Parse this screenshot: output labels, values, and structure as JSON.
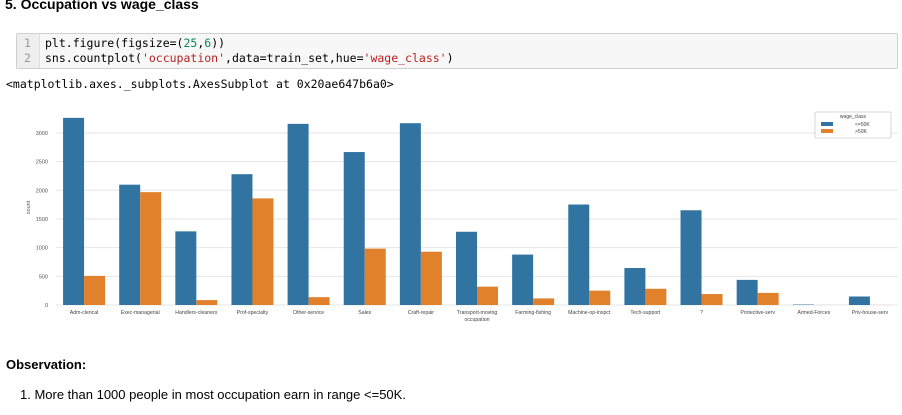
{
  "heading": "5. Occupation vs wage_class",
  "code": {
    "line_numbers": [
      "1",
      "2"
    ],
    "line1": {
      "prefix": "plt.figure(figsize=(",
      "num1": "25",
      "sep": ",",
      "num2": "6",
      "suffix": "))"
    },
    "line2": {
      "prefix": "sns.countplot(",
      "str1": "'occupation'",
      "mid": ",data=train_set,hue=",
      "str2": "'wage_class'",
      "suffix": ")"
    }
  },
  "output_repr": "<matplotlib.axes._subplots.AxesSubplot at 0x20ae647b6a0>",
  "chart_data": {
    "type": "bar",
    "title": "",
    "xlabel": "",
    "ylabel": "count",
    "ylim": [
      0,
      3400
    ],
    "yticks": [
      0,
      500,
      1000,
      1500,
      2000,
      2500,
      3000
    ],
    "grid": true,
    "legend_placement": "top-right",
    "legend_title": "wage_class",
    "categories": [
      "Adm-clerical",
      "Exec-managerial",
      "Handlers-cleaners",
      "Prof-specialty",
      "Other-service",
      "Sales",
      "Craft-repair",
      "Transport-moving",
      "Farming-fishing",
      "Machine-op-inspct",
      "Tech-support",
      "?",
      "Protective-serv",
      "Armed-Forces",
      "Priv-house-serv"
    ],
    "category_lines": [
      [
        "Adm-clerical"
      ],
      [
        "Exec-managerial"
      ],
      [
        "Handlers-cleaners"
      ],
      [
        "Prof-specialty"
      ],
      [
        "Other-service"
      ],
      [
        "Sales"
      ],
      [
        "Craft-repair"
      ],
      [
        "Transport-moving",
        "occupation"
      ],
      [
        "Farming-fishing"
      ],
      [
        "Machine-op-inspct"
      ],
      [
        "Tech-support"
      ],
      [
        "?"
      ],
      [
        "Protective-serv"
      ],
      [
        "Armed-Forces"
      ],
      [
        "Priv-house-serv"
      ]
    ],
    "series": [
      {
        "name": "<=50K",
        "color": "#3274a1",
        "values": [
          3263,
          2098,
          1284,
          2281,
          3158,
          2667,
          3170,
          1277,
          879,
          1752,
          645,
          1652,
          438,
          8,
          148
        ]
      },
      {
        "name": ">50K",
        "color": "#e1812c",
        "values": [
          507,
          1968,
          86,
          1859,
          137,
          983,
          929,
          320,
          115,
          250,
          283,
          191,
          211,
          1,
          1
        ]
      }
    ]
  },
  "observation": {
    "title": "Observation:",
    "items": [
      "1. More than 1000 people in most occupation earn in range <=50K."
    ]
  }
}
